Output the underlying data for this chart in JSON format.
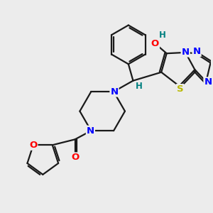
{
  "bg_color": "#ececec",
  "bond_color": "#1a1a1a",
  "bond_width": 1.6,
  "dbo": 0.055,
  "atom_colors": {
    "N": "#0000ff",
    "O": "#ff0000",
    "S": "#b8b800",
    "H": "#008080"
  },
  "font_size": 9.5
}
